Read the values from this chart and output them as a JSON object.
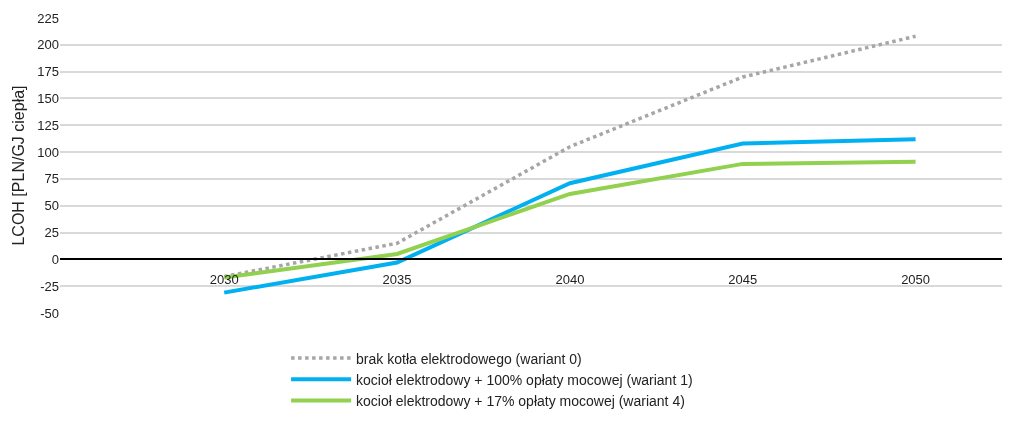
{
  "chart_data": {
    "type": "line",
    "ylabel": "LCOH [PLN/GJ ciepła]",
    "categories": [
      "2030",
      "2035",
      "2040",
      "2045",
      "2050"
    ],
    "series": [
      {
        "name": "brak kotła elektrodowego (wariant 0)",
        "color": "#a6a6a6",
        "line_style": "dotted",
        "values": [
          -16,
          15,
          105,
          170,
          208
        ]
      },
      {
        "name": "kocioł elektrodowy + 100% opłaty mocowej (wariant 1)",
        "color": "#00b0f0",
        "line_style": "solid",
        "values": [
          -31,
          -3,
          71,
          108,
          112
        ]
      },
      {
        "name": "kocioł elektrodowy + 17% opłaty mocowej (wariant 4)",
        "color": "#92d050",
        "line_style": "solid",
        "values": [
          -17,
          5,
          61,
          89,
          91
        ]
      }
    ],
    "ylim": [
      -50,
      225
    ],
    "yticks": [
      -50,
      -25,
      0,
      25,
      50,
      75,
      100,
      125,
      150,
      175,
      200,
      225
    ],
    "grid": "y",
    "legend": "bottom",
    "marker": "none"
  }
}
